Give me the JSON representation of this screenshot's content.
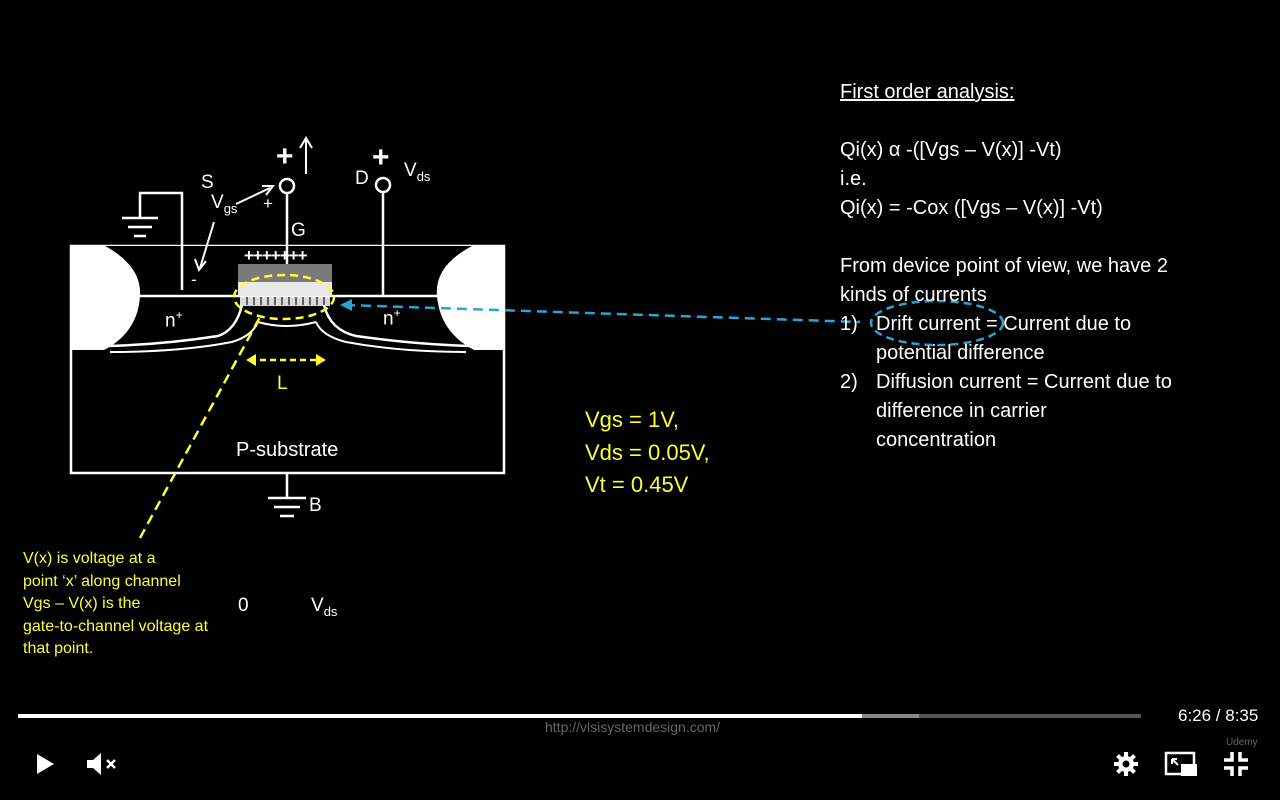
{
  "slide": {
    "analysis": {
      "heading": "First order analysis:",
      "eq1": "Qi(x) α -([Vgs – V(x)] -Vt)",
      "ie": "i.e.",
      "eq2": "Qi(x) = -Cox ([Vgs – V(x)] -Vt)",
      "intro1": "From device point of view, we have 2",
      "intro2": "kinds of currents",
      "items": [
        {
          "num": "1)",
          "line1": "Drift current = Current due to",
          "line2": "potential difference"
        },
        {
          "num": "2)",
          "line1": "Diffusion current = Current due to",
          "line2": "difference in carrier",
          "line3": "concentration"
        }
      ]
    },
    "values": {
      "vgs": "Vgs = 1V,",
      "vds": "Vds = 0.05V,",
      "vt": "Vt = 0.45V"
    },
    "note": {
      "line1": "V(x) is voltage at a",
      "line2": "point ‘x’ along channel",
      "line3": "Vgs – V(x) is the",
      "line4": "gate-to-channel voltage at",
      "line5": "that point."
    },
    "axis": {
      "zero": "0",
      "v": "V",
      "v_sub": "ds"
    },
    "diagram": {
      "source": "S",
      "drain": "D",
      "gate": "G",
      "body": "B",
      "plus_gate": "+",
      "plus_drain": "+",
      "vds_main": "V",
      "vds_sub": "ds",
      "vgs_main": "V",
      "vgs_sub": "gs",
      "vgs_plus": "+",
      "vgs_minus": "-",
      "gate_charges": "+++++++",
      "n_left": "n",
      "n_right": "n",
      "n_sup": "+",
      "length": "L",
      "substrate": "P-substrate"
    }
  },
  "player": {
    "time": "6:26 / 8:35",
    "progress_played": 0.752,
    "progress_buffered": 0.802,
    "watermark_url": "http://vlsisystemdesign.com/",
    "brand": "Udemy",
    "colors": {
      "highlight": "#ffff33",
      "arrow": "#2aa3d8",
      "gate": "#7a7a7a"
    }
  }
}
